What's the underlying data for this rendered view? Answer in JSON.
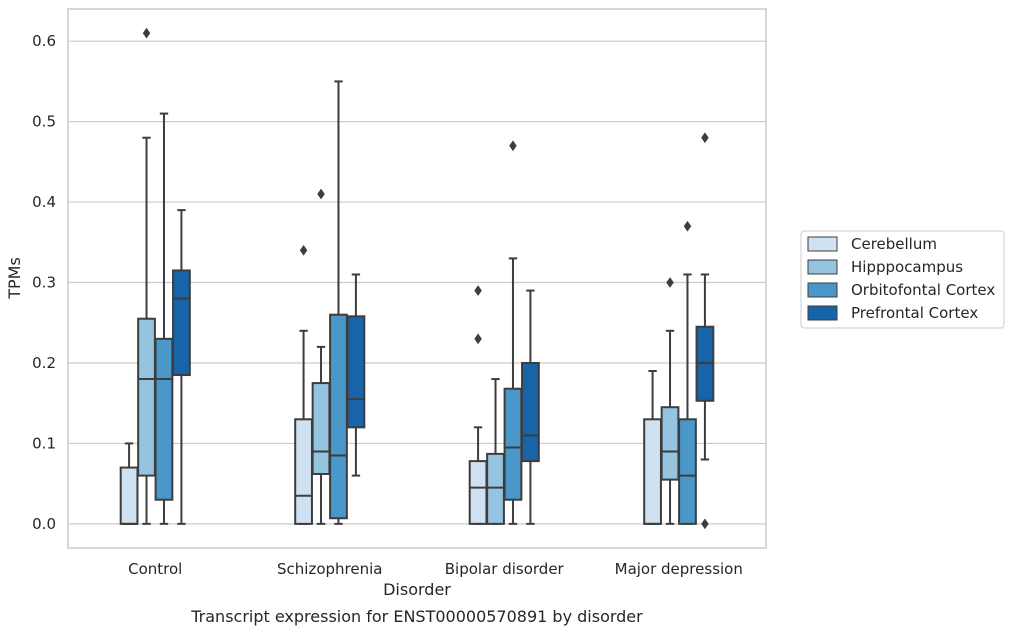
{
  "chart_data": {
    "type": "box",
    "title": "",
    "caption": "Transcript expression for ENST00000570891 by disorder",
    "xlabel": "Disorder",
    "ylabel": "TPMs",
    "ylim": [
      -0.03,
      0.64
    ],
    "yticks": [
      0.0,
      0.1,
      0.2,
      0.3,
      0.4,
      0.5,
      0.6
    ],
    "ytick_labels": [
      "0.0",
      "0.1",
      "0.2",
      "0.3",
      "0.4",
      "0.5",
      "0.6"
    ],
    "grid": "horizontal",
    "legend_position": "right",
    "categories": [
      "Control",
      "Schizophrenia",
      "Bipolar disorder",
      "Major depression"
    ],
    "series": [
      {
        "name": "Cerebellum",
        "color": "#d0e1f2",
        "boxes": [
          {
            "whisker_low": 0.0,
            "q1": 0.0,
            "median": 0.0,
            "q3": 0.07,
            "whisker_high": 0.1,
            "outliers": []
          },
          {
            "whisker_low": 0.0,
            "q1": 0.0,
            "median": 0.035,
            "q3": 0.13,
            "whisker_high": 0.24,
            "outliers": [
              0.34
            ]
          },
          {
            "whisker_low": 0.0,
            "q1": 0.0,
            "median": 0.045,
            "q3": 0.078,
            "whisker_high": 0.12,
            "outliers": [
              0.23,
              0.29
            ]
          },
          {
            "whisker_low": 0.0,
            "q1": 0.0,
            "median": 0.0,
            "q3": 0.13,
            "whisker_high": 0.19,
            "outliers": []
          }
        ]
      },
      {
        "name": "Hipppocampus",
        "color": "#94c4df",
        "boxes": [
          {
            "whisker_low": 0.0,
            "q1": 0.06,
            "median": 0.18,
            "q3": 0.255,
            "whisker_high": 0.48,
            "outliers": [
              0.61
            ]
          },
          {
            "whisker_low": 0.0,
            "q1": 0.062,
            "median": 0.09,
            "q3": 0.175,
            "whisker_high": 0.22,
            "outliers": [
              0.41
            ]
          },
          {
            "whisker_low": 0.0,
            "q1": 0.0,
            "median": 0.045,
            "q3": 0.087,
            "whisker_high": 0.18,
            "outliers": []
          },
          {
            "whisker_low": 0.0,
            "q1": 0.055,
            "median": 0.09,
            "q3": 0.145,
            "whisker_high": 0.24,
            "outliers": [
              0.3
            ]
          }
        ]
      },
      {
        "name": "Orbitofontal Cortex",
        "color": "#4a98c9",
        "boxes": [
          {
            "whisker_low": 0.0,
            "q1": 0.03,
            "median": 0.18,
            "q3": 0.23,
            "whisker_high": 0.51,
            "outliers": []
          },
          {
            "whisker_low": 0.0,
            "q1": 0.007,
            "median": 0.085,
            "q3": 0.26,
            "whisker_high": 0.55,
            "outliers": []
          },
          {
            "whisker_low": 0.0,
            "q1": 0.03,
            "median": 0.095,
            "q3": 0.168,
            "whisker_high": 0.33,
            "outliers": [
              0.47
            ]
          },
          {
            "whisker_low": 0.0,
            "q1": 0.0,
            "median": 0.06,
            "q3": 0.13,
            "whisker_high": 0.31,
            "outliers": [
              0.37
            ]
          }
        ]
      },
      {
        "name": "Prefrontal Cortex",
        "color": "#1764ab",
        "boxes": [
          {
            "whisker_low": 0.0,
            "q1": 0.185,
            "median": 0.28,
            "q3": 0.315,
            "whisker_high": 0.39,
            "outliers": []
          },
          {
            "whisker_low": 0.06,
            "q1": 0.12,
            "median": 0.155,
            "q3": 0.258,
            "whisker_high": 0.31,
            "outliers": []
          },
          {
            "whisker_low": 0.0,
            "q1": 0.078,
            "median": 0.11,
            "q3": 0.2,
            "whisker_high": 0.29,
            "outliers": []
          },
          {
            "whisker_low": 0.08,
            "q1": 0.153,
            "median": 0.2,
            "q3": 0.245,
            "whisker_high": 0.31,
            "outliers": [
              0.0,
              0.48
            ]
          }
        ]
      }
    ]
  }
}
